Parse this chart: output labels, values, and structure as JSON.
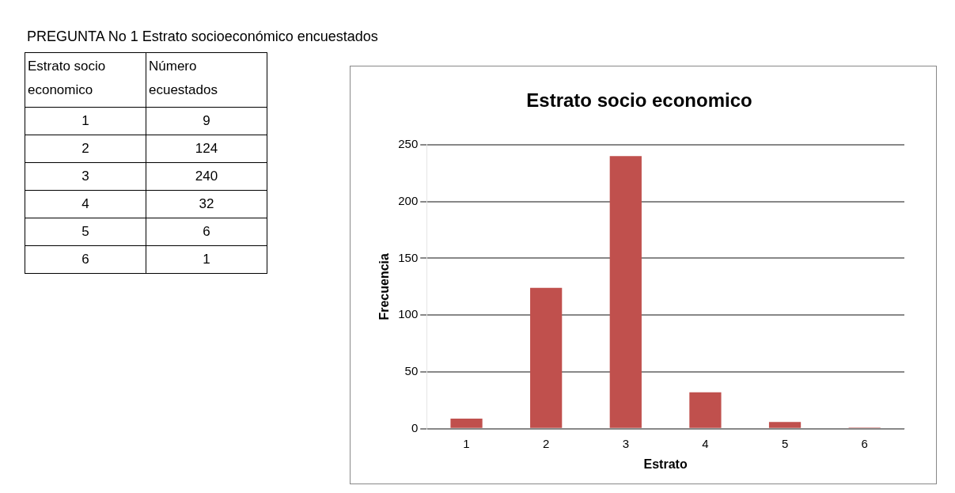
{
  "chart_data": {
    "type": "bar",
    "title": "Estrato socio economico",
    "xlabel": "Estrato",
    "ylabel": "Frecuencia",
    "categories": [
      "1",
      "2",
      "3",
      "4",
      "5",
      "6"
    ],
    "values": [
      9,
      124,
      240,
      32,
      6,
      1
    ],
    "color": "#c0504d",
    "ylim": [
      0,
      250
    ],
    "yticks": [
      0,
      50,
      100,
      150,
      200,
      250
    ],
    "grid": "y",
    "legend": false,
    "annotations": [
      "PREGUNTA No 1 Estrato socioeconómico encuestados",
      "Estrato socio economico",
      "Número ecuestados",
      "1",
      "9",
      "2",
      "124",
      "3",
      "240",
      "4",
      "32",
      "5",
      "6",
      "6",
      "1"
    ]
  }
}
